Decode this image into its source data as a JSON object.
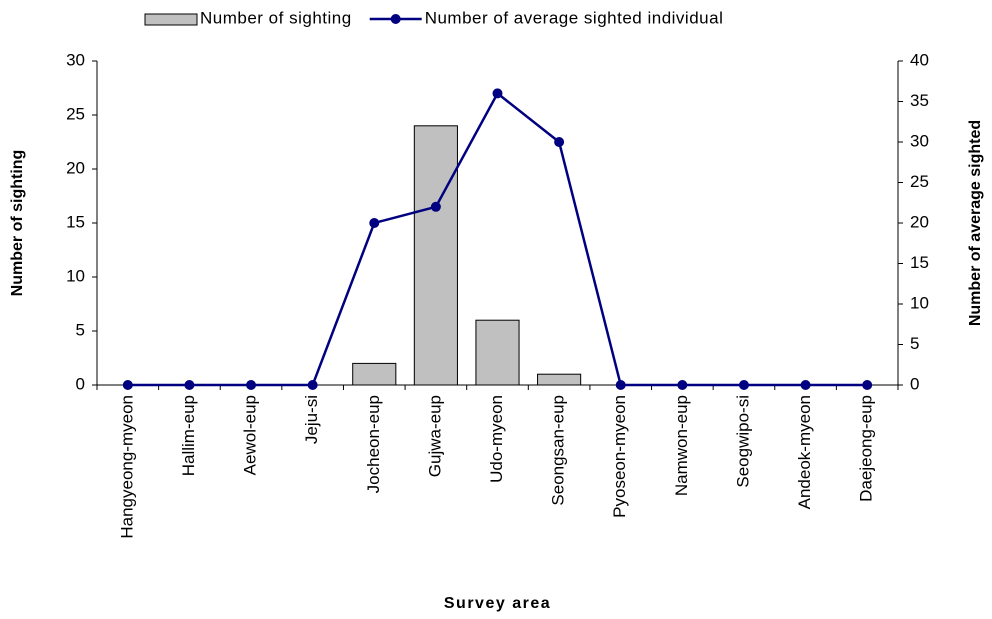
{
  "chart_data": {
    "type": "bar",
    "categories": [
      "Hangyeong-myeon",
      "Hallim-eup",
      "Aewol-eup",
      "Jeju-si",
      "Jocheon-eup",
      "Gujwa-eup",
      "Udo-myeon",
      "Seongsan-eup",
      "Pyoseon-myeon",
      "Namwon-eup",
      "Seogwipo-si",
      "Andeok-myeon",
      "Daejeong-eup"
    ],
    "series": [
      {
        "name": "Number of sighting",
        "type": "bar",
        "color": "#c0c0c0",
        "values": [
          0,
          0,
          0,
          0,
          2,
          24,
          6,
          1,
          0,
          0,
          0,
          0,
          0
        ]
      },
      {
        "name": "Number of average sighted individual",
        "type": "line",
        "axis": "y2",
        "color": "#000080",
        "values": [
          0,
          0,
          0,
          0,
          20,
          22,
          36,
          30,
          0,
          0,
          0,
          0,
          0
        ]
      }
    ],
    "xlabel": "Survey area",
    "ylabel": "Number of sighting",
    "y2label": "Number of average sighted",
    "ylim": [
      0,
      30
    ],
    "yticks": [
      0,
      5,
      10,
      15,
      20,
      25,
      30
    ],
    "y2lim": [
      0,
      40
    ],
    "y2ticks": [
      0,
      5,
      10,
      15,
      20,
      25,
      30,
      35,
      40
    ],
    "legend": "top"
  }
}
